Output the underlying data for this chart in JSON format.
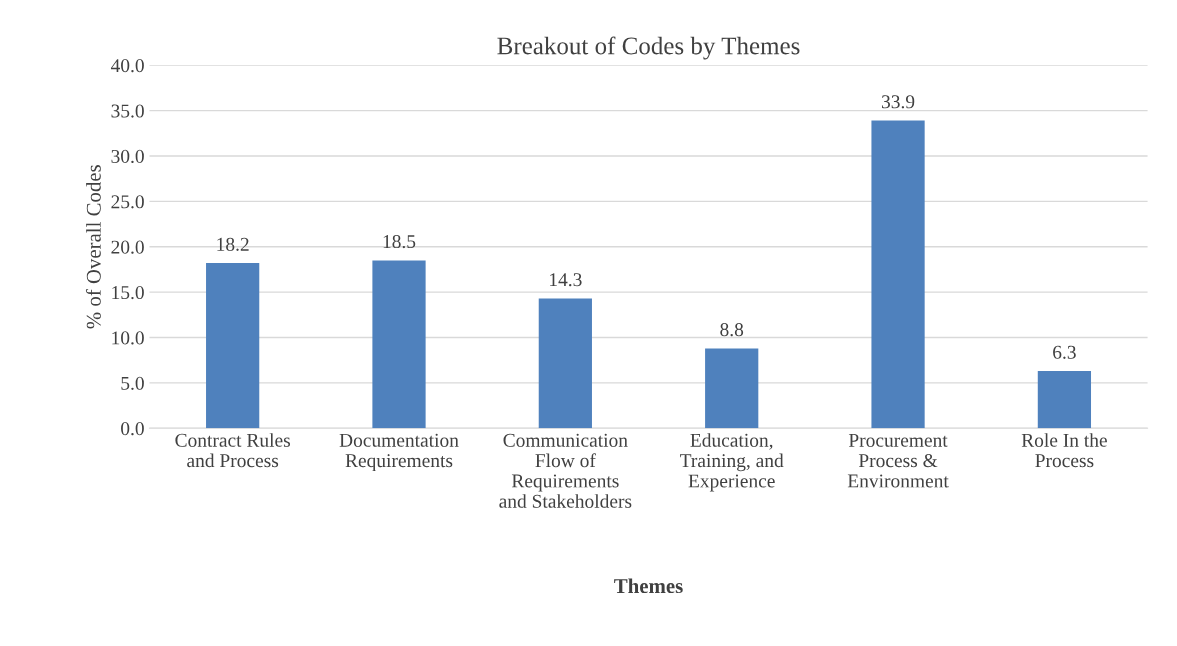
{
  "chart_data": {
    "type": "bar",
    "title": "Breakout of Codes by Themes",
    "xlabel": "Themes",
    "ylabel": "% of Overall Codes",
    "categories": [
      "Contract Rules\nand Process",
      "Documentation\nRequirements",
      "Communication\nFlow of\nRequirements\nand Stakeholders",
      "Education,\nTraining, and\nExperience",
      "Procurement\nProcess &\nEnvironment",
      "Role In the\nProcess"
    ],
    "values": [
      18.2,
      18.5,
      14.3,
      8.8,
      33.9,
      6.3
    ],
    "color": "#4f81bd",
    "ylim": [
      0,
      40
    ],
    "yticks": [
      {
        "value": 0,
        "label": "0.0"
      },
      {
        "value": 5,
        "label": "5.0"
      },
      {
        "value": 10,
        "label": "10.0"
      },
      {
        "value": 15,
        "label": "15.0"
      },
      {
        "value": 20,
        "label": "20.0"
      },
      {
        "value": 25,
        "label": "25.0"
      },
      {
        "value": 30,
        "label": "30.0"
      },
      {
        "value": 35,
        "label": "35.0"
      },
      {
        "value": 40,
        "label": "40.0"
      }
    ],
    "grid": "y",
    "data_labels": true,
    "legend": false
  }
}
